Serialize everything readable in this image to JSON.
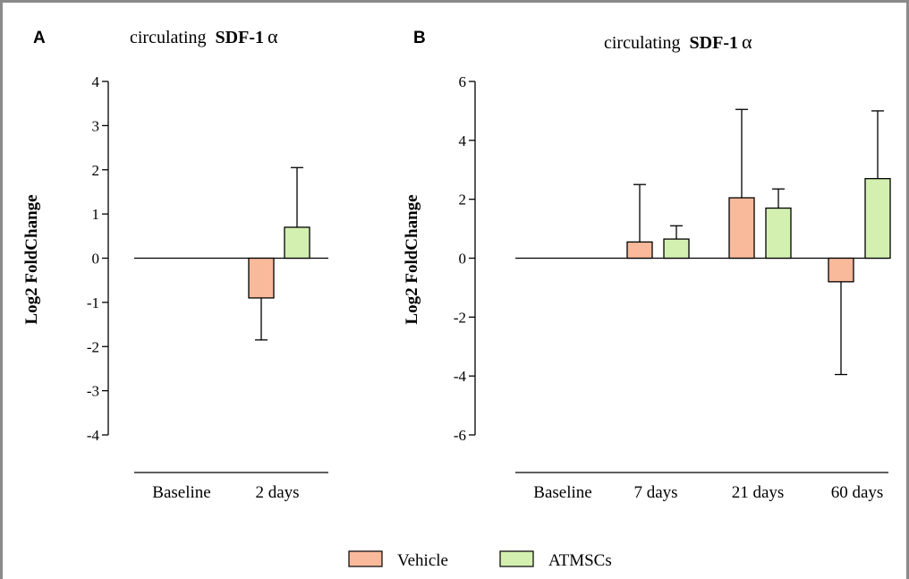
{
  "colors": {
    "vehicle": "#f9b99b",
    "atmscs": "#d3f0b1",
    "stroke": "#000000",
    "frame": "#8a8a8a"
  },
  "legend": [
    {
      "name": "Vehicle",
      "color": "#f9b99b"
    },
    {
      "name": "ATMSCs",
      "color": "#d3f0b1"
    }
  ],
  "chart_data": [
    {
      "panel": "A",
      "type": "bar",
      "title_prefix": "circulating",
      "title_bold": "SDF-1",
      "title_greek": "α",
      "ylabel": "Log2 FoldChange",
      "ylim": [
        -4,
        4
      ],
      "yticks": [
        4,
        3,
        2,
        1,
        0,
        -1,
        -2,
        -3,
        -4
      ],
      "categories": [
        "Baseline",
        "2 days"
      ],
      "series": [
        {
          "name": "Vehicle",
          "values": [
            0,
            -0.9
          ],
          "error": [
            0,
            0.95
          ]
        },
        {
          "name": "ATMSCs",
          "values": [
            0,
            0.7
          ],
          "error": [
            0,
            1.35
          ]
        }
      ]
    },
    {
      "panel": "B",
      "type": "bar",
      "title_prefix": "circulating",
      "title_bold": "SDF-1",
      "title_greek": "α",
      "ylabel": "Log2 FoldChange",
      "ylim": [
        -6,
        6
      ],
      "yticks": [
        6,
        4,
        2,
        0,
        -2,
        -4,
        -6
      ],
      "categories": [
        "Baseline",
        "7 days",
        "21 days",
        "60 days"
      ],
      "series": [
        {
          "name": "Vehicle",
          "values": [
            0,
            0.55,
            2.05,
            -0.8
          ],
          "error": [
            0,
            1.95,
            3.0,
            3.15
          ]
        },
        {
          "name": "ATMSCs",
          "values": [
            0,
            0.65,
            1.7,
            2.7
          ],
          "error": [
            0,
            0.45,
            0.65,
            2.3
          ]
        }
      ]
    }
  ]
}
